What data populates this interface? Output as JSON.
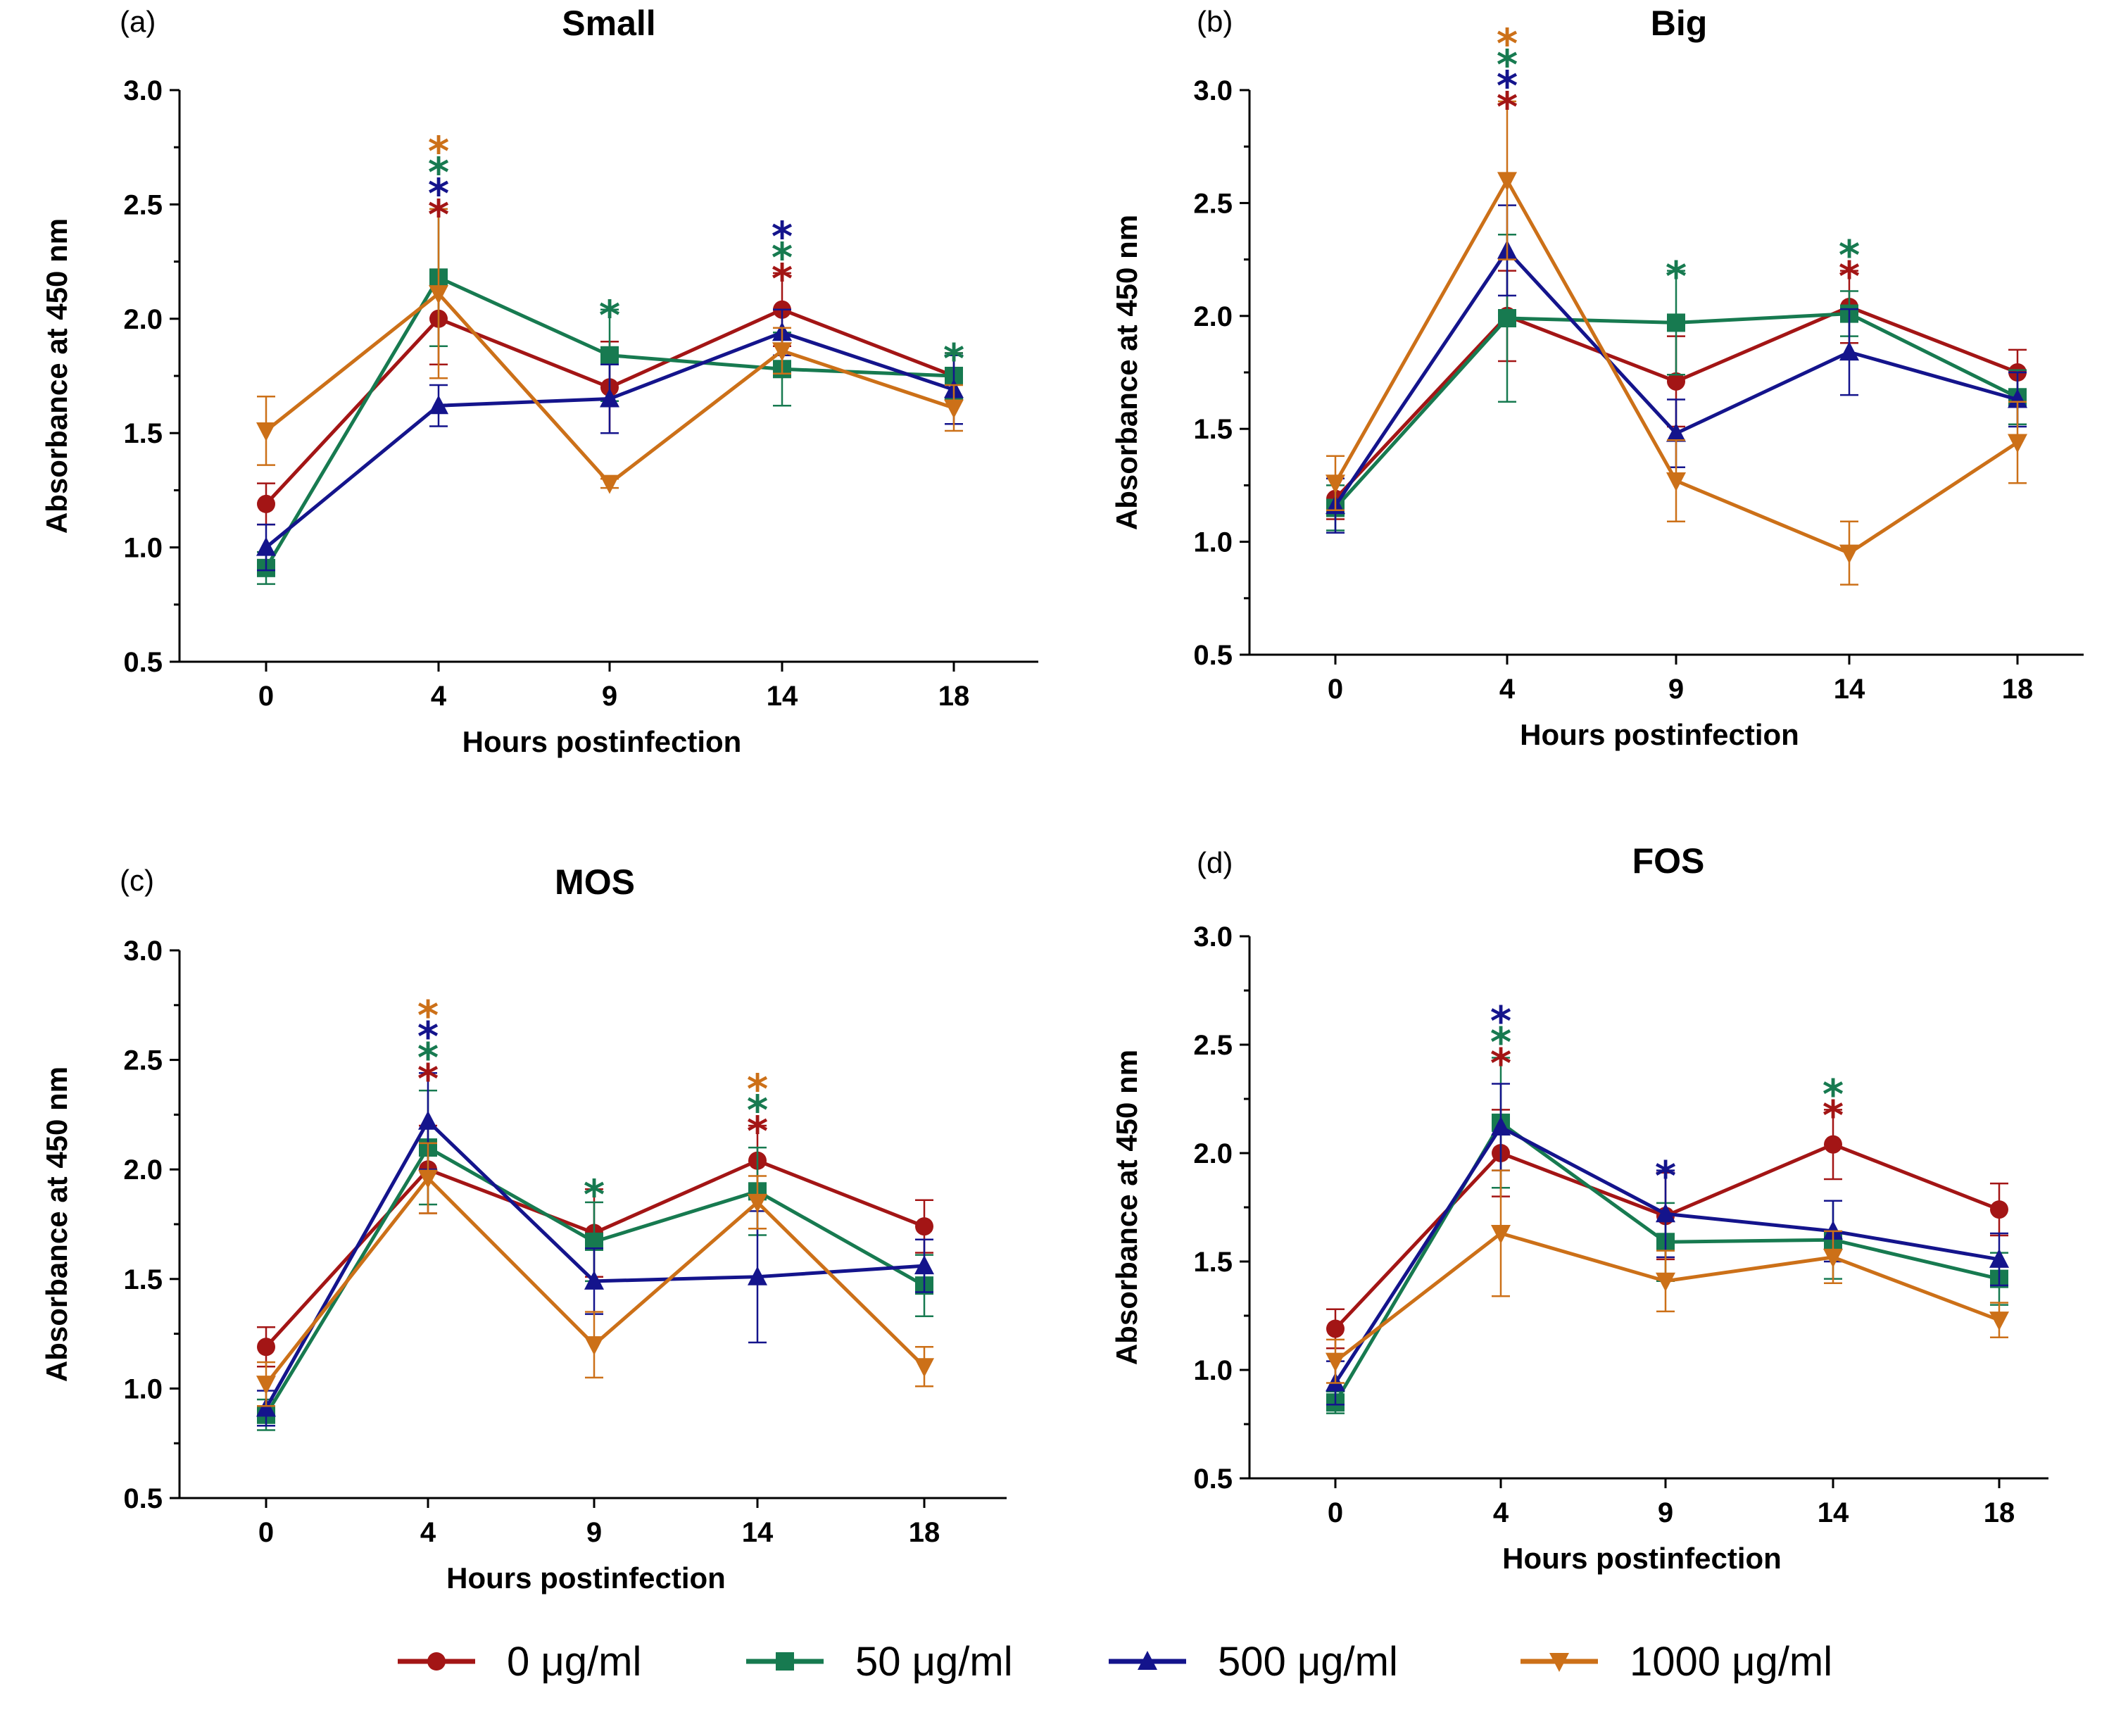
{
  "figure": {
    "legend": [
      {
        "name": "0 μg/ml",
        "color": "#A31515",
        "marker": "circle"
      },
      {
        "name": "50 μg/ml",
        "color": "#177A50",
        "marker": "square"
      },
      {
        "name": "500 μg/ml",
        "color": "#14148C",
        "marker": "triangle-up"
      },
      {
        "name": "1000 μg/ml",
        "color": "#CC7018",
        "marker": "triangle-down"
      }
    ]
  },
  "chart_data": [
    {
      "type": "line",
      "label": "(a)",
      "title": "Small",
      "xlabel": "Hours postinfection",
      "ylabel": "Absorbance at 450 nm",
      "categories": [
        "0",
        "4",
        "9",
        "14",
        "18"
      ],
      "ylim": [
        0.5,
        3.0
      ],
      "yticks": [
        "0.5",
        "1.0",
        "1.5",
        "2.0",
        "2.5",
        "3.0"
      ],
      "series": [
        {
          "name": "0 μg/ml",
          "values": [
            1.19,
            2.0,
            1.7,
            2.04,
            1.75
          ],
          "err": [
            0.09,
            0.2,
            0.2,
            0.16,
            0.1
          ]
        },
        {
          "name": "50 μg/ml",
          "values": [
            0.91,
            2.18,
            1.84,
            1.78,
            1.75
          ],
          "err": [
            0.07,
            0.3,
            0.2,
            0.16,
            0.1
          ]
        },
        {
          "name": "500 μg/ml",
          "values": [
            1.0,
            1.62,
            1.65,
            1.94,
            1.69
          ],
          "err": [
            0.1,
            0.09,
            0.15,
            0.1,
            0.15
          ]
        },
        {
          "name": "1000 μg/ml",
          "values": [
            1.51,
            2.11,
            1.28,
            1.86,
            1.61
          ],
          "err": [
            0.15,
            0.37,
            0.02,
            0.1,
            0.1
          ]
        }
      ],
      "annotations": [
        {
          "x": "4",
          "stars": [
            "0 μg/ml",
            "500 μg/ml",
            "50 μg/ml",
            "1000 μg/ml"
          ]
        },
        {
          "x": "9",
          "stars": [
            "50 μg/ml"
          ]
        },
        {
          "x": "14",
          "stars": [
            "0 μg/ml",
            "50 μg/ml",
            "500 μg/ml"
          ]
        },
        {
          "x": "18",
          "stars": [
            "50 μg/ml"
          ]
        }
      ]
    },
    {
      "type": "line",
      "label": "(b)",
      "title": "Big",
      "xlabel": "Hours postinfection",
      "ylabel": "Absorbance at 450 nm",
      "categories": [
        "0",
        "4",
        "9",
        "14",
        "18"
      ],
      "ylim": [
        0.5,
        3.0
      ],
      "yticks": [
        "0.5",
        "1.0",
        "1.5",
        "2.0",
        "2.5",
        "3.0"
      ],
      "series": [
        {
          "name": "0 μg/ml",
          "values": [
            1.19,
            2.0,
            1.71,
            2.04,
            1.75
          ],
          "err": [
            0.09,
            0.2,
            0.2,
            0.16,
            0.1
          ]
        },
        {
          "name": "50 μg/ml",
          "values": [
            1.15,
            1.99,
            1.97,
            2.01,
            1.64
          ],
          "err": [
            0.1,
            0.37,
            0.23,
            0.1,
            0.12
          ]
        },
        {
          "name": "500 μg/ml",
          "values": [
            1.16,
            2.29,
            1.48,
            1.84,
            1.63
          ],
          "err": [
            0.12,
            0.2,
            0.15,
            0.19,
            0.12
          ]
        },
        {
          "name": "1000 μg/ml",
          "values": [
            1.26,
            2.6,
            1.27,
            0.95,
            1.44
          ],
          "err": [
            0.12,
            0.35,
            0.18,
            0.14,
            0.18
          ]
        }
      ],
      "annotations": [
        {
          "x": "4",
          "stars": [
            "0 μg/ml",
            "500 μg/ml",
            "50 μg/ml",
            "1000 μg/ml"
          ]
        },
        {
          "x": "9",
          "stars": [
            "50 μg/ml"
          ]
        },
        {
          "x": "14",
          "stars": [
            "0 μg/ml",
            "50 μg/ml"
          ]
        }
      ]
    },
    {
      "type": "line",
      "label": "(c)",
      "title": "MOS",
      "xlabel": "Hours postinfection",
      "ylabel": "Absorbance at 450 nm",
      "categories": [
        "0",
        "4",
        "9",
        "14",
        "18"
      ],
      "ylim": [
        0.5,
        3.0
      ],
      "yticks": [
        "0.5",
        "1.0",
        "1.5",
        "2.0",
        "2.5",
        "3.0"
      ],
      "series": [
        {
          "name": "0 μg/ml",
          "values": [
            1.19,
            2.0,
            1.71,
            2.04,
            1.74
          ],
          "err": [
            0.09,
            0.2,
            0.2,
            0.16,
            0.12
          ]
        },
        {
          "name": "50 μg/ml",
          "values": [
            0.88,
            2.1,
            1.67,
            1.9,
            1.47
          ],
          "err": [
            0.07,
            0.26,
            0.18,
            0.2,
            0.14
          ]
        },
        {
          "name": "500 μg/ml",
          "values": [
            0.91,
            2.22,
            1.49,
            1.51,
            1.56
          ],
          "err": [
            0.08,
            0.22,
            0.15,
            0.3,
            0.12
          ]
        },
        {
          "name": "1000 μg/ml",
          "values": [
            1.02,
            1.96,
            1.2,
            1.85,
            1.1
          ],
          "err": [
            0.1,
            0.16,
            0.15,
            0.12,
            0.09
          ]
        }
      ],
      "annotations": [
        {
          "x": "4",
          "stars": [
            "0 μg/ml",
            "50 μg/ml",
            "500 μg/ml",
            "1000 μg/ml"
          ]
        },
        {
          "x": "9",
          "stars": [
            "50 μg/ml"
          ]
        },
        {
          "x": "14",
          "stars": [
            "0 μg/ml",
            "50 μg/ml",
            "1000 μg/ml"
          ]
        }
      ]
    },
    {
      "type": "line",
      "label": "(d)",
      "title": "FOS",
      "xlabel": "Hours postinfection",
      "ylabel": "Absorbance at 450 nm",
      "categories": [
        "0",
        "4",
        "9",
        "14",
        "18"
      ],
      "ylim": [
        0.5,
        3.0
      ],
      "yticks": [
        "0.5",
        "1.0",
        "1.5",
        "2.0",
        "2.5",
        "3.0"
      ],
      "series": [
        {
          "name": "0 μg/ml",
          "values": [
            1.19,
            2.0,
            1.71,
            2.04,
            1.74
          ],
          "err": [
            0.09,
            0.2,
            0.2,
            0.16,
            0.12
          ]
        },
        {
          "name": "50 μg/ml",
          "values": [
            0.85,
            2.14,
            1.59,
            1.6,
            1.42
          ],
          "err": [
            0.05,
            0.3,
            0.18,
            0.18,
            0.12
          ]
        },
        {
          "name": "500 μg/ml",
          "values": [
            0.94,
            2.12,
            1.72,
            1.64,
            1.51
          ],
          "err": [
            0.1,
            0.2,
            0.2,
            0.14,
            0.12
          ]
        },
        {
          "name": "1000 μg/ml",
          "values": [
            1.04,
            1.63,
            1.41,
            1.52,
            1.23
          ],
          "err": [
            0.1,
            0.29,
            0.14,
            0.12,
            0.08
          ]
        }
      ],
      "annotations": [
        {
          "x": "4",
          "stars": [
            "0 μg/ml",
            "50 μg/ml",
            "500 μg/ml"
          ]
        },
        {
          "x": "9",
          "stars": [
            "500 μg/ml"
          ]
        },
        {
          "x": "14",
          "stars": [
            "0 μg/ml",
            "50 μg/ml"
          ]
        }
      ]
    }
  ]
}
